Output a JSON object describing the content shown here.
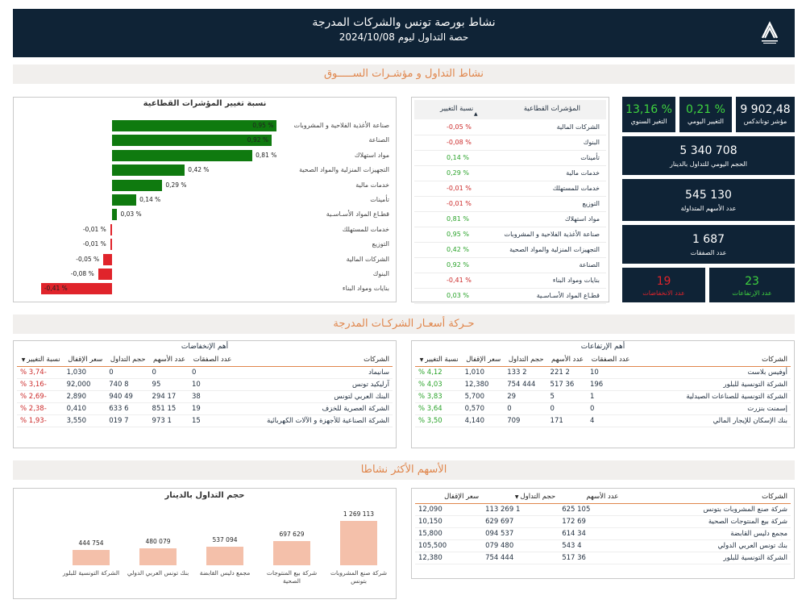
{
  "header": {
    "title": "نشاط بورصة تونس والشركات المدرجة",
    "subtitle": "حصة التداول ليوم 2024/10/08"
  },
  "section1": {
    "title": "نشاط التداول و مؤشـرات الســـــوق"
  },
  "section2": {
    "title": "حـركة أسعـار الشركـات المدرجة"
  },
  "section3": {
    "title": "الأسهم الأكثر نشاطا"
  },
  "sector_chart": {
    "title": "نسبة تغيير المؤشرات القطاعية",
    "rows": [
      {
        "label": "صناعة الأغذية الفلاحية و المشروبات",
        "value": 0.95,
        "text": "0,95 %"
      },
      {
        "label": "الصناعة",
        "value": 0.92,
        "text": "0,92 %"
      },
      {
        "label": "مواد استهلاك",
        "value": 0.81,
        "text": "0,81 %"
      },
      {
        "label": "التجهيزات المنزلية والمواد الصحية",
        "value": 0.42,
        "text": "0,42 %"
      },
      {
        "label": "خدمات مالية",
        "value": 0.29,
        "text": "0,29 %"
      },
      {
        "label": "تأمينات",
        "value": 0.14,
        "text": "0,14 %"
      },
      {
        "label": "قطـاع المواد الأسـاسـية",
        "value": 0.03,
        "text": "0,03 %"
      },
      {
        "label": "خدمات للمستهلك",
        "value": -0.01,
        "text": "-0,01 %"
      },
      {
        "label": "التوزيع",
        "value": -0.01,
        "text": "-0,01 %"
      },
      {
        "label": "الشركات المالية",
        "value": -0.05,
        "text": "-0,05 %"
      },
      {
        "label": "البنوك",
        "value": -0.08,
        "text": "-0,08 %"
      },
      {
        "label": "بنايات ومواد البناء",
        "value": -0.41,
        "text": "-0,41 %"
      }
    ],
    "pos_color": "#0f7a0f",
    "neg_color": "#e0242b"
  },
  "sector_table": {
    "col_name": "المؤشرات القطاعية",
    "col_change": "نسبة التغيير",
    "rows": [
      {
        "name": "الشركات المالية",
        "change": "-0,05 %",
        "sign": "neg"
      },
      {
        "name": "البنوك",
        "change": "-0,08 %",
        "sign": "neg"
      },
      {
        "name": "تأمينات",
        "change": "0,14 %",
        "sign": "pos"
      },
      {
        "name": "خدمات مالية",
        "change": "0,29 %",
        "sign": "pos"
      },
      {
        "name": "خدمات للمستهلك",
        "change": "-0,01 %",
        "sign": "neg"
      },
      {
        "name": "التوزيع",
        "change": "-0,01 %",
        "sign": "neg"
      },
      {
        "name": "مواد استهلاك",
        "change": "0,81 %",
        "sign": "pos"
      },
      {
        "name": "صناعة الأغذية الفلاحية و المشروبات",
        "change": "0,95 %",
        "sign": "pos"
      },
      {
        "name": "التجهيزات المنزلية والمواد الصحية",
        "change": "0,42 %",
        "sign": "pos"
      },
      {
        "name": "الصناعة",
        "change": "0,92 %",
        "sign": "pos"
      },
      {
        "name": "بنايات ومواد البناء",
        "change": "-0,41 %",
        "sign": "neg"
      },
      {
        "name": "قطـاع المواد الأسـاسـية",
        "change": "0,03 %",
        "sign": "pos"
      }
    ]
  },
  "kpis": {
    "index_value": "9 902,48",
    "index_label": "مؤشر توناندكس",
    "daily_change": "0,21 %",
    "daily_label": "التغيير اليومي",
    "yearly_change": "13,16 %",
    "yearly_label": "التغير السنوي",
    "volume_value": "5 340 708",
    "volume_label": "الحجم اليومي للتداول بالدينار",
    "shares_value": "545 130",
    "shares_label": "عدد الأسهم المتداولة",
    "trades_value": "1 687",
    "trades_label": "عدد الصفقات",
    "ups_value": "23",
    "ups_label": "عدد الإرتفاعات",
    "downs_value": "19",
    "downs_label": "عدد الانخفاضات"
  },
  "gainers": {
    "title": "أهم الإرتفاعات",
    "headers": [
      "الشركات",
      "عدد الصفقات",
      "عدد الأسهم",
      "حجم التداول",
      "سعر الإقفال",
      "نسبة التغيير"
    ],
    "rows": [
      [
        "أوفيس بلاست",
        "10",
        "2 221",
        "2 133",
        "1,010",
        "4,12 %"
      ],
      [
        "الشركة التونسية للبلور",
        "196",
        "36 517",
        "444 754",
        "12,380",
        "4,03 %"
      ],
      [
        "الشركة التونسية للصناعات الصيدلية",
        "1",
        "5",
        "29",
        "5,700",
        "3,83 %"
      ],
      [
        "إسمنت بنزرت",
        "0",
        "0",
        "0",
        "0,570",
        "3,64 %"
      ],
      [
        "بنك الإسكان للإيجار المالي",
        "4",
        "171",
        "709",
        "4,140",
        "3,50 %"
      ]
    ]
  },
  "losers": {
    "title": "أهم الإنخفاضات",
    "headers": [
      "الشركات",
      "عدد الصفقات",
      "عدد الأسهم",
      "حجم التداول",
      "سعر الإقفال",
      "نسبة التغيير"
    ],
    "rows": [
      [
        "سانيماد",
        "0",
        "0",
        "0",
        "1,030",
        "-3,74 %"
      ],
      [
        "آرليكيد تونس",
        "10",
        "95",
        "8 740",
        "92,000",
        "-3,16 %"
      ],
      [
        "البنك العربي لتونس",
        "38",
        "17 294",
        "49 940",
        "2,890",
        "-2,69 %"
      ],
      [
        "الشركة العصرية للخزف",
        "19",
        "15 851",
        "6 633",
        "0,410",
        "-2,38 %"
      ],
      [
        "الشركة الصناعية للأجهزة و الآلات الكهربائية",
        "15",
        "1 973",
        "7 019",
        "3,550",
        "-1,93 %"
      ]
    ]
  },
  "volume_chart": {
    "title": "حجم التداول بالدينار",
    "bar_color": "#f4c0aa",
    "bars": [
      {
        "label": "شركة صنع المشروبات بتونس",
        "value": 1269113,
        "text": "1 269 113"
      },
      {
        "label": "شركة بيع المنتوجات الصحية",
        "value": 697629,
        "text": "697 629"
      },
      {
        "label": "مجمع دليس القابضة",
        "value": 537094,
        "text": "537 094"
      },
      {
        "label": "بنك تونس العربي الدولي",
        "value": 480079,
        "text": "480 079"
      },
      {
        "label": "الشركة التونسية للبلور",
        "value": 444754,
        "text": "444 754"
      }
    ]
  },
  "active_table": {
    "headers": [
      "الشركات",
      "عدد الأسهم",
      "حجم التداول",
      "سعر الإقفال"
    ],
    "rows": [
      [
        "شركة صنع المشروبات بتونس",
        "105 625",
        "1 269 113",
        "12,090"
      ],
      [
        "شركة بيع المنتوجات الصحية",
        "69 172",
        "697 629",
        "10,150"
      ],
      [
        "مجمع دليس القابضة",
        "34 614",
        "537 094",
        "15,800"
      ],
      [
        "بنك تونس العربي الدولي",
        "4 543",
        "480 079",
        "105,500"
      ],
      [
        "الشركة التونسية للبلور",
        "36 517",
        "444 754",
        "12,380"
      ]
    ]
  }
}
